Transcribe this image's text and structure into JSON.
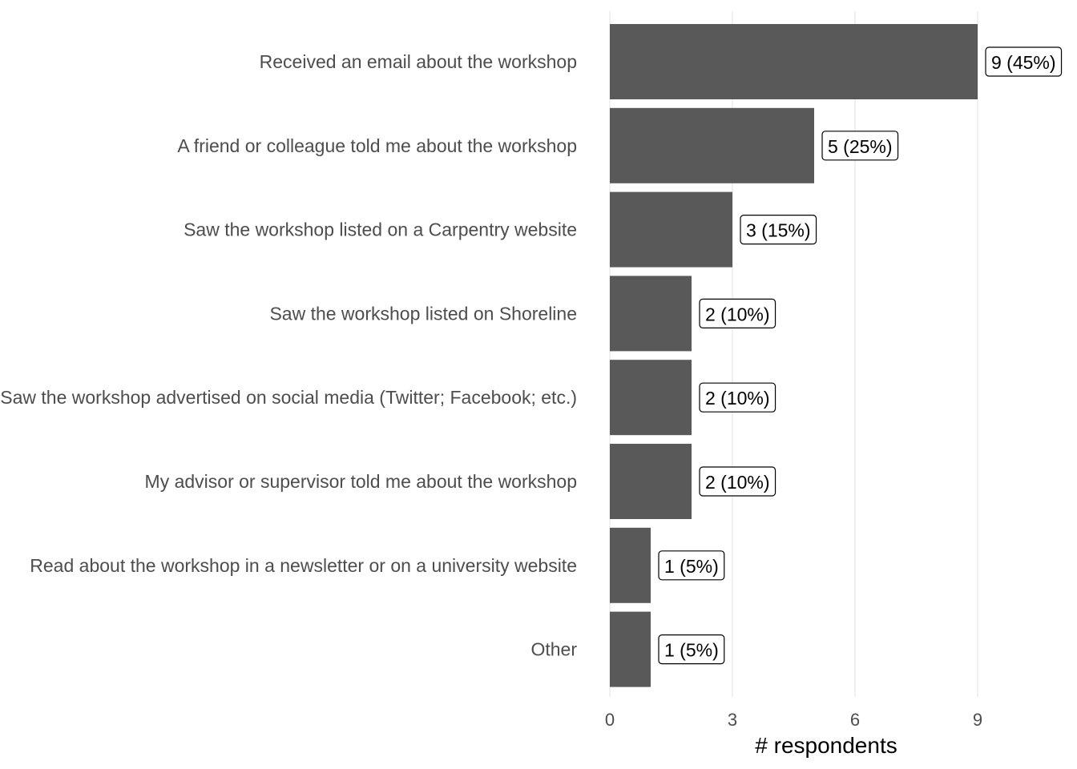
{
  "chart_data": {
    "type": "bar",
    "orientation": "horizontal",
    "categories": [
      "Received an email about the workshop",
      "A friend or colleague told me about the workshop",
      "Saw the workshop listed on a Carpentry website",
      "Saw the workshop listed on Shoreline",
      "Saw the workshop advertised on social media (Twitter; Facebook; etc.)",
      "My advisor or supervisor told me about the workshop",
      "Read about the workshop in a newsletter or on a university website",
      "Other"
    ],
    "values": [
      9,
      5,
      3,
      2,
      2,
      2,
      1,
      1
    ],
    "data_labels": [
      "9 (45%)",
      "5 (25%)",
      "3 (15%)",
      "2 (10%)",
      "2 (10%)",
      "2 (10%)",
      "1 (5%)",
      "1 (5%)"
    ],
    "xlabel": "# respondents",
    "ylabel": "",
    "xlim": [
      0,
      11
    ],
    "xticks": [
      0,
      3,
      6,
      9
    ],
    "grid": true,
    "bar_color": "#595959"
  }
}
